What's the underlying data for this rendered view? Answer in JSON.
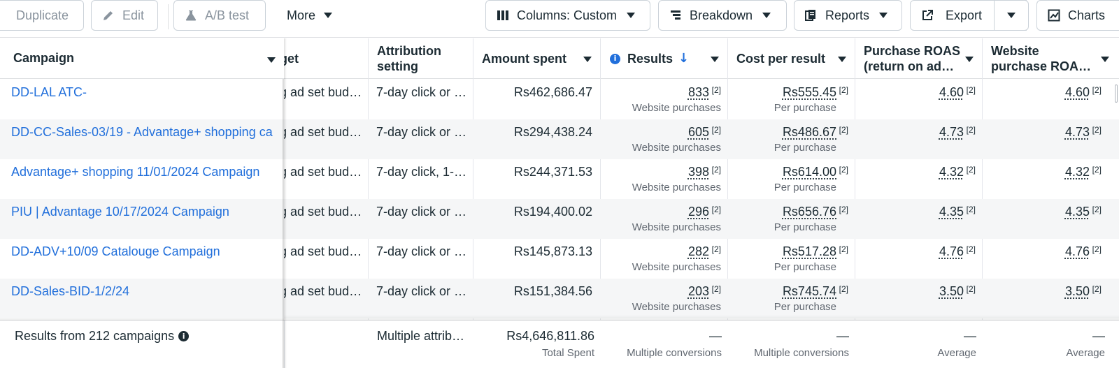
{
  "toolbar": {
    "duplicate_label": "Duplicate",
    "edit_label": "Edit",
    "abtest_label": "A/B test",
    "more_label": "More",
    "columns_label": "Columns: Custom",
    "breakdown_label": "Breakdown",
    "reports_label": "Reports",
    "export_label": "Export",
    "charts_label": "Charts"
  },
  "headers": {
    "campaign": "Campaign",
    "budget": "get",
    "attribution_line1": "Attribution",
    "attribution_line2": "setting",
    "amount_spent": "Amount spent",
    "results": "Results",
    "cost_per_result": "Cost per result",
    "purchase_roas_line1": "Purchase ROAS",
    "purchase_roas_line2": "(return on ad…",
    "website_roas_line1": "Website",
    "website_roas_line2": "purchase ROA…"
  },
  "rows": [
    {
      "campaign": "DD-LAL ATC-",
      "budget": "g ad set bud…",
      "attribution": "7-day click or …",
      "spent": "Rs462,686.47",
      "results": "833",
      "results_sup": "[2]",
      "results_sub": "Website purchases",
      "cpr": "Rs555.45",
      "cpr_sup": "[2]",
      "cpr_sub": "Per purchase",
      "proas": "4.60",
      "proas_sup": "[2]",
      "wroas": "4.60",
      "wroas_sup": "[2]"
    },
    {
      "campaign": "DD-CC-Sales-03/19 - Advantage+ shopping ca…",
      "budget": "g ad set bud…",
      "attribution": "7-day click or …",
      "spent": "Rs294,438.24",
      "results": "605",
      "results_sup": "[2]",
      "results_sub": "Website purchases",
      "cpr": "Rs486.67",
      "cpr_sup": "[2]",
      "cpr_sub": "Per purchase",
      "proas": "4.73",
      "proas_sup": "[2]",
      "wroas": "4.73",
      "wroas_sup": "[2]"
    },
    {
      "campaign": "Advantage+ shopping 11/01/2024 Campaign",
      "budget": "g ad set bud…",
      "attribution": "7-day click, 1-…",
      "spent": "Rs244,371.53",
      "results": "398",
      "results_sup": "[2]",
      "results_sub": "Website purchases",
      "cpr": "Rs614.00",
      "cpr_sup": "[2]",
      "cpr_sub": "Per purchase",
      "proas": "4.32",
      "proas_sup": "[2]",
      "wroas": "4.32",
      "wroas_sup": "[2]"
    },
    {
      "campaign": "PIU | Advantage 10/17/2024 Campaign",
      "budget": "g ad set bud…",
      "attribution": "7-day click or …",
      "spent": "Rs194,400.02",
      "results": "296",
      "results_sup": "[2]",
      "results_sub": "Website purchases",
      "cpr": "Rs656.76",
      "cpr_sup": "[2]",
      "cpr_sub": "Per purchase",
      "proas": "4.35",
      "proas_sup": "[2]",
      "wroas": "4.35",
      "wroas_sup": "[2]"
    },
    {
      "campaign": "DD-ADV+10/09 Catalouge Campaign",
      "budget": "g ad set bud…",
      "attribution": "7-day click or …",
      "spent": "Rs145,873.13",
      "results": "282",
      "results_sup": "[2]",
      "results_sub": "Website purchases",
      "cpr": "Rs517.28",
      "cpr_sup": "[2]",
      "cpr_sub": "Per purchase",
      "proas": "4.76",
      "proas_sup": "[2]",
      "wroas": "4.76",
      "wroas_sup": "[2]"
    },
    {
      "campaign": "DD-Sales-BID-1/2/24",
      "budget": "g ad set bud…",
      "attribution": "7-day click or …",
      "spent": "Rs151,384.56",
      "results": "203",
      "results_sup": "[2]",
      "results_sub": "Website purchases",
      "cpr": "Rs745.74",
      "cpr_sup": "[2]",
      "cpr_sub": "Per purchase",
      "proas": "3.50",
      "proas_sup": "[2]",
      "wroas": "3.50",
      "wroas_sup": "[2]"
    }
  ],
  "footer": {
    "summary": "Results from 212 campaigns",
    "info_glyph": "i",
    "attribution": "Multiple attrib…",
    "spent": "Rs4,646,811.86",
    "spent_sub": "Total Spent",
    "results_dash": "—",
    "results_sub": "Multiple conversions",
    "cpr_dash": "—",
    "cpr_sub": "Multiple conversions",
    "proas_dash": "—",
    "proas_sub": "Average",
    "wroas_dash": "—",
    "wroas_sub": "Average"
  },
  "colors": {
    "link": "#216fdb",
    "text": "#1c2b33",
    "muted": "#606770",
    "row_alt": "#f5f6f7",
    "border": "#dddfe2"
  },
  "icons": {
    "duplicate": "duplicate-icon",
    "edit": "pencil-icon",
    "abtest": "flask-icon",
    "columns": "columns-icon",
    "breakdown": "breakdown-icon",
    "reports": "reports-icon",
    "export": "export-icon",
    "charts": "chart-icon",
    "results_info": "info-icon",
    "sort": "sort-down-arrow-icon"
  }
}
